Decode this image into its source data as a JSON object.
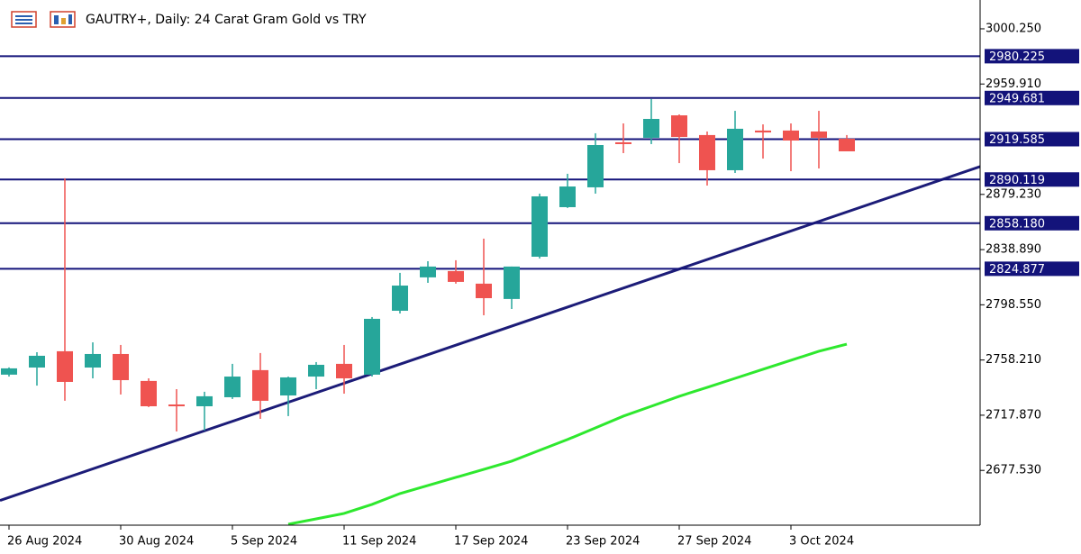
{
  "chart_data": {
    "type": "candlestick",
    "title": "GAUTRY+, Daily:  24 Carat Gram Gold vs TRY",
    "categories": [
      "26 Aug 2024",
      null,
      null,
      null,
      "30 Aug 2024",
      null,
      null,
      null,
      "5 Sep 2024",
      null,
      null,
      null,
      "11 Sep 2024",
      null,
      null,
      null,
      "17 Sep 2024",
      null,
      null,
      null,
      "23 Sep 2024",
      null,
      null,
      null,
      "27 Sep 2024",
      null,
      null,
      null,
      "3 Oct 2024",
      null,
      null
    ],
    "open": [
      2747.5,
      2752.7,
      2764.6,
      2752.7,
      2762.6,
      2742.9,
      2725.7,
      2724.4,
      2731.0,
      2750.8,
      2732.3,
      2746.1,
      2755.4,
      2747.5,
      2794.2,
      2818.6,
      2823.2,
      2814.0,
      2802.8,
      2833.7,
      2869.9,
      2884.4,
      2917.3,
      2920.6,
      2937.0,
      2922.6,
      2896.9,
      2925.9,
      2925.9,
      2925.2,
      2919.9
    ],
    "high": [
      2752.8,
      2763.9,
      2891.0,
      2771.1,
      2769.2,
      2744.8,
      2736.9,
      2735.0,
      2755.4,
      2763.3,
      2746.1,
      2756.7,
      2769.2,
      2789.6,
      2821.9,
      2830.4,
      2831.1,
      2846.9,
      2826.5,
      2879.8,
      2894.3,
      2923.9,
      2931.1,
      2948.9,
      2937.7,
      2925.2,
      2940.3,
      2930.4,
      2931.1,
      2940.3,
      2922.6
    ],
    "low": [
      2746.1,
      2739.5,
      2728.4,
      2744.8,
      2733.0,
      2723.8,
      2706.0,
      2706.7,
      2729.7,
      2715.2,
      2717.2,
      2736.9,
      2733.6,
      2746.1,
      2792.2,
      2814.6,
      2814.0,
      2790.9,
      2795.5,
      2832.4,
      2869.3,
      2879.8,
      2909.4,
      2916.0,
      2902.1,
      2885.7,
      2894.9,
      2905.4,
      2896.2,
      2898.2,
      2910.7
    ],
    "close": [
      2752.1,
      2761.3,
      2742.2,
      2762.6,
      2743.5,
      2724.4,
      2724.4,
      2731.7,
      2746.1,
      2728.4,
      2745.5,
      2754.7,
      2744.8,
      2788.3,
      2812.6,
      2826.5,
      2815.3,
      2803.4,
      2826.5,
      2877.8,
      2885.0,
      2915.3,
      2916.0,
      2934.4,
      2921.2,
      2896.9,
      2927.2,
      2924.5,
      2918.6,
      2920.6,
      2910.7
    ],
    "up_color": "#26a69a",
    "down_color": "#ef5350",
    "series": [
      {
        "color": "#2ee82e",
        "values": [
          null,
          null,
          null,
          null,
          null,
          null,
          null,
          null,
          null,
          null,
          2638.2,
          2642.1,
          2646.1,
          2652.7,
          2660.6,
          2666.5,
          2672.4,
          2678.3,
          2684.3,
          2692.2,
          2700.1,
          2708.6,
          2717.2,
          2724.4,
          2731.7,
          2738.2,
          2744.8,
          2751.4,
          2758.0,
          2764.6,
          2769.8
        ]
      }
    ],
    "trendline": [
      2657.8,
      2866.4
    ],
    "levels": [
      {
        "value": 2980.225,
        "label": "2980.225"
      },
      {
        "value": 2949.681,
        "label": "2949.681"
      },
      {
        "value": 2919.585,
        "label": "2919.585"
      },
      {
        "value": 2890.119,
        "label": "2890.119"
      },
      {
        "value": 2858.18,
        "label": "2858.180"
      },
      {
        "value": 2824.877,
        "label": "2824.877"
      }
    ],
    "level_color": "#13137a",
    "ylim": [
      2637.5,
      3021.3
    ],
    "yticks": [
      {
        "value": 3000.25,
        "label": "3000.250"
      },
      {
        "value": 2959.91,
        "label": "2959.910"
      },
      {
        "value": 2879.23,
        "label": "2879.230"
      },
      {
        "value": 2838.89,
        "label": "2838.890"
      },
      {
        "value": 2798.55,
        "label": "2798.550"
      },
      {
        "value": 2758.21,
        "label": "2758.210"
      },
      {
        "value": 2717.87,
        "label": "2717.870"
      },
      {
        "value": 2677.53,
        "label": "2677.530"
      }
    ]
  }
}
